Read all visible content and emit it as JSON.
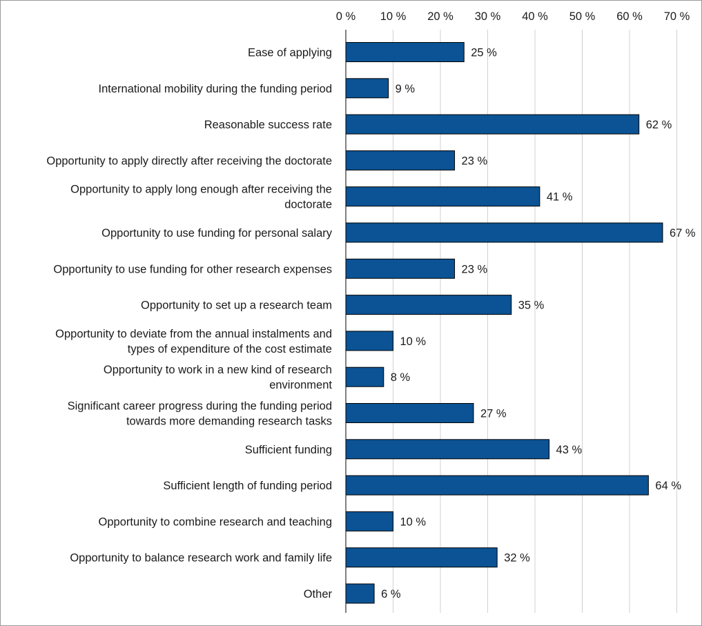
{
  "chart_data": {
    "type": "bar",
    "orientation": "horizontal",
    "title": "",
    "xlabel": "",
    "ylabel": "",
    "xlim": [
      0,
      70
    ],
    "tick_values": [
      0,
      10,
      20,
      30,
      40,
      50,
      60,
      70
    ],
    "tick_labels": [
      "0 %",
      "10 %",
      "20 %",
      "30 %",
      "40 %",
      "50 %",
      "60 %",
      "70 %"
    ],
    "axis_position": "top",
    "grid": true,
    "legend": "none",
    "bar_color": "#0b5394",
    "categories": [
      [
        "Ease of applying"
      ],
      [
        "International mobility during the funding period"
      ],
      [
        "Reasonable success rate"
      ],
      [
        "Opportunity to apply directly after receiving the doctorate"
      ],
      [
        "Opportunity to apply long enough after receiving the",
        "doctorate"
      ],
      [
        "Opportunity to use funding for personal salary"
      ],
      [
        "Opportunity to use funding for other research expenses"
      ],
      [
        "Opportunity to set up a research team"
      ],
      [
        "Opportunity to deviate from the annual instalments and",
        "types of expenditure of the cost estimate"
      ],
      [
        "Opportunity to work in a new kind of research",
        "environment"
      ],
      [
        "Significant career progress during the funding period",
        "towards more demanding research tasks"
      ],
      [
        "Sufficient funding"
      ],
      [
        "Sufficient length of funding period"
      ],
      [
        "Opportunity to combine research and teaching"
      ],
      [
        "Opportunity to balance research work and family life"
      ],
      [
        "Other"
      ]
    ],
    "values": [
      25,
      9,
      62,
      23,
      41,
      67,
      23,
      35,
      10,
      8,
      27,
      43,
      64,
      10,
      32,
      6
    ],
    "value_labels": [
      "25 %",
      "9 %",
      "62 %",
      "23 %",
      "41 %",
      "67 %",
      "23 %",
      "35 %",
      "10 %",
      "8 %",
      "27 %",
      "43 %",
      "64 %",
      "10 %",
      "32 %",
      "6 %"
    ]
  }
}
